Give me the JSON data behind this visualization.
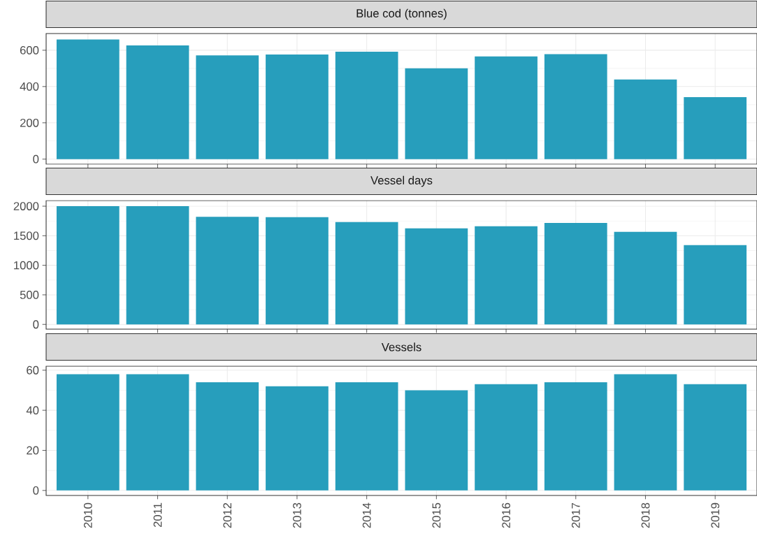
{
  "chart_data": [
    {
      "type": "bar",
      "title": "Blue cod (tonnes)",
      "categories": [
        "2010",
        "2011",
        "2012",
        "2013",
        "2014",
        "2015",
        "2016",
        "2017",
        "2018",
        "2019"
      ],
      "values": [
        659,
        627,
        572,
        576,
        592,
        500,
        566,
        578,
        439,
        342
      ],
      "color": "#279ebc",
      "ylim": [
        -28,
        692
      ],
      "yticks": [
        0,
        200,
        400,
        600
      ],
      "grid": true,
      "tick_labels": "y"
    },
    {
      "type": "bar",
      "title": "Vessel days",
      "categories": [
        "2010",
        "2011",
        "2012",
        "2013",
        "2014",
        "2015",
        "2016",
        "2017",
        "2018",
        "2019"
      ],
      "values": [
        2000,
        2000,
        1821,
        1813,
        1732,
        1624,
        1661,
        1718,
        1566,
        1341
      ],
      "color": "#279ebc",
      "ylim": [
        -80,
        2095
      ],
      "yticks": [
        0,
        500,
        1000,
        1500,
        2000
      ],
      "grid": true,
      "tick_labels": "y"
    },
    {
      "type": "bar",
      "title": "Vessels",
      "categories": [
        "2010",
        "2011",
        "2012",
        "2013",
        "2014",
        "2015",
        "2016",
        "2017",
        "2018",
        "2019"
      ],
      "values": [
        58,
        58,
        54,
        52,
        54,
        50,
        53,
        54,
        58,
        53
      ],
      "color": "#279ebc",
      "ylim": [
        -2.5,
        62
      ],
      "yticks": [
        0,
        20,
        40,
        60
      ],
      "grid": true
    }
  ]
}
